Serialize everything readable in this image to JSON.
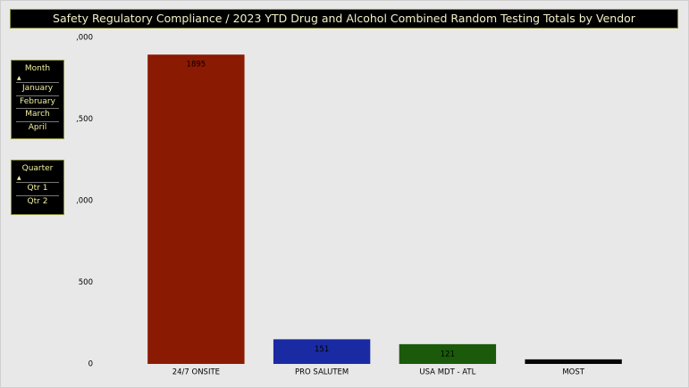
{
  "header": {
    "title": "Safety Regulatory Compliance / 2023 YTD Drug and Alcohol Combined Random Testing Totals by Vendor"
  },
  "slicers": [
    {
      "title": "Month",
      "items": [
        "January",
        "February",
        "March",
        "April"
      ]
    },
    {
      "title": "Quarter",
      "items": [
        "Qtr 1",
        "Qtr 2"
      ]
    }
  ],
  "chart_data": {
    "type": "bar",
    "categories": [
      "24/7 ONSITE",
      "PRO SALUTEM",
      "USA MDT - ATL",
      "MOST"
    ],
    "values": [
      1895,
      151,
      121,
      28
    ],
    "value_labels": [
      "1895",
      "151",
      "121",
      null
    ],
    "colors": [
      "#8b1a02",
      "#1a2aa3",
      "#1a5a0a",
      "#050505"
    ],
    "ylim": [
      0,
      2000
    ],
    "yticks": [
      0,
      500,
      {
        "value": 1000,
        "label": ",000"
      },
      {
        "value": 1500,
        "label": ",500"
      },
      {
        "value": 2000,
        "label": ",000"
      }
    ],
    "grid": false
  }
}
